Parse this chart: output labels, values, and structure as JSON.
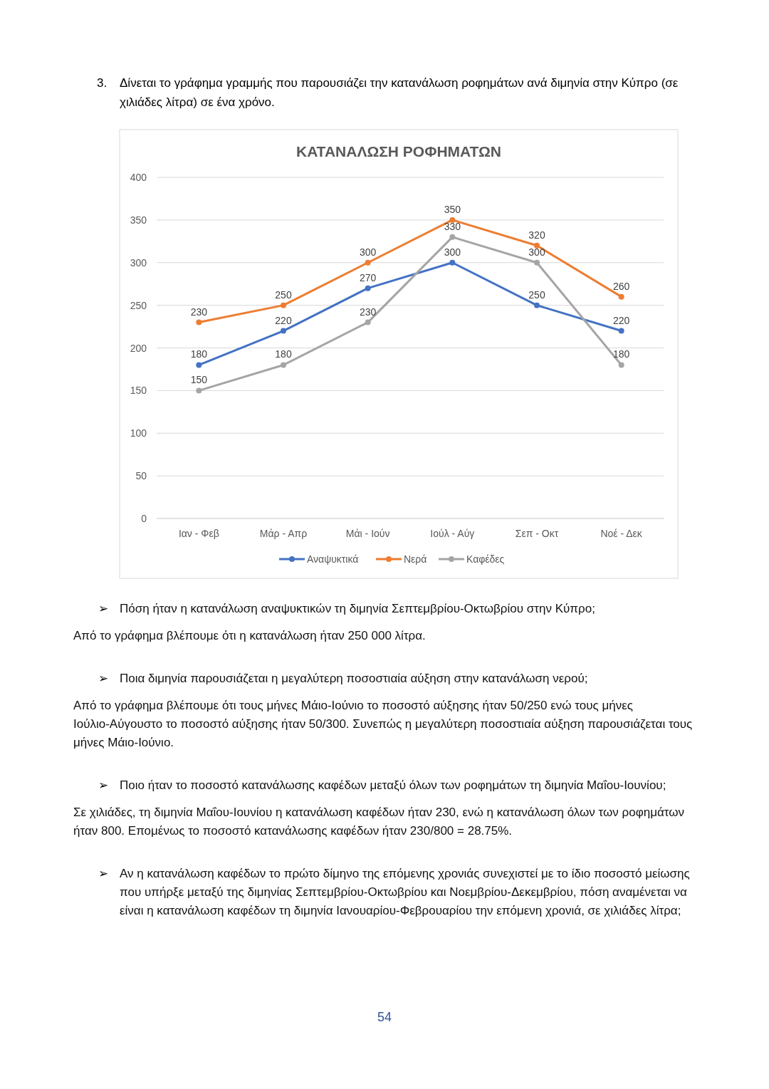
{
  "chart_data": {
    "type": "line",
    "title": "ΚΑΤΑΝΑΛΩΣΗ ΡΟΦΗΜΑΤΩΝ",
    "categories": [
      "Ιαν - Φεβ",
      "Μάρ - Απρ",
      "Μάι - Ιούν",
      "Ιούλ - Αύγ",
      "Σεπ - Οκτ",
      "Νοέ - Δεκ"
    ],
    "series": [
      {
        "name": "Αναψυκτικά",
        "color": "#4472c4",
        "values": [
          180,
          220,
          270,
          300,
          250,
          220
        ]
      },
      {
        "name": "Νερά",
        "color": "#ed7d31",
        "values": [
          230,
          250,
          300,
          350,
          320,
          260
        ]
      },
      {
        "name": "Καφέδες",
        "color": "#a5a5a5",
        "values": [
          150,
          180,
          230,
          330,
          300,
          180
        ]
      }
    ],
    "ylim": [
      0,
      400
    ],
    "yticks": [
      0,
      50,
      100,
      150,
      200,
      250,
      300,
      350,
      400
    ],
    "grid": "y",
    "legend": "bottom",
    "marker": "circle",
    "data_labels": true,
    "annotations": [
      "3. Δίνεται το γράφημα γραμμής που παρουσιάζει την κατανάλωση ροφημάτων ανά διμηνία στην Κύπρο (σε χιλιάδες λίτρα) σε ένα χρόνο.",
      "➢ Πόση ήταν η κατανάλωση αναψυκτικών τη διμηνία Σεπτεμβρίου-Οκτωβρίου στην Κύπρο;",
      "Από το γράφημα βλέπουμε ότι η κατανάλωση ήταν 250 000 λίτρα.",
      "➢ Ποια διμηνία παρουσιάζεται η μεγαλύτερη ποσοστιαία αύξηση στην κατανάλωση νερού;",
      "Από το γράφημα βλέπουμε ότι τους μήνες Μάιο-Ιούνιο το ποσοστό αύξησης ήταν 50/250 ενώ τους μήνες Ιούλιο-Αύγουστο το ποσοστό αύξησης ήταν 50/300. Συνεπώς η μεγαλύτερη ποσοστιαία αύξηση παρουσιάζεται τους μήνες Μάιο-Ιούνιο.",
      "➢ Ποιο ήταν το ποσοστό κατανάλωσης καφέδων μεταξύ όλων των ροφημάτων τη διμηνία Μαΐου-Ιουνίου;",
      "Σε χιλιάδες, τη διμηνία Μαΐου-Ιουνίου η κατανάλωση καφέδων ήταν 230, ενώ η κατανάλωση όλων των ροφημάτων ήταν 800. Επομένως το ποσοστό κατανάλωσης καφέδων ήταν 230/800 = 28.75%.",
      "➢ Αν η κατανάλωση καφέδων το πρώτο δίμηνο της επόμενης χρονιάς συνεχιστεί με το ίδιο ποσοστό μείωσης που υπήρξε μεταξύ της διμηνίας Σεπτεμβρίου-Οκτωβρίου και Νοεμβρίου-Δεκεμβρίου, πόση αναμένεται να είναι η κατανάλωση καφέδων τη διμηνία Ιανουαρίου-Φεβρουαρίου την επόμενη χρονιά, σε χιλιάδες λίτρα;",
      "54"
    ]
  }
}
